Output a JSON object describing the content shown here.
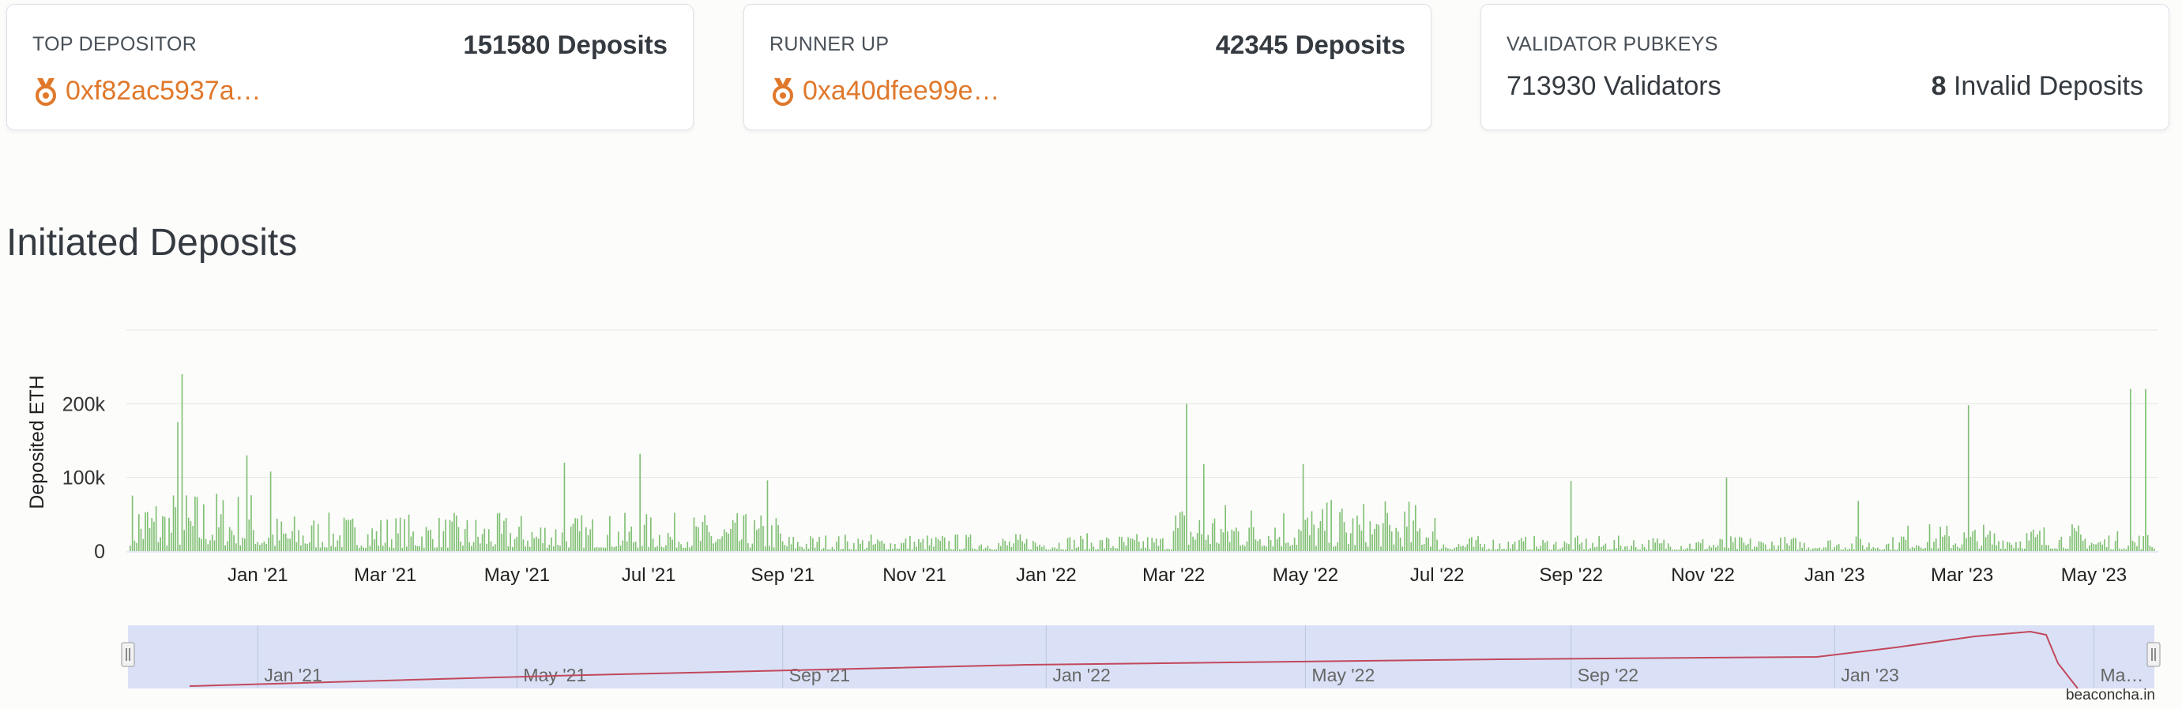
{
  "cards": {
    "top_depositor": {
      "label": "TOP DEPOSITOR",
      "count": "151580 Deposits",
      "address": "0xf82ac5937a…",
      "icon": "medal-icon"
    },
    "runner_up": {
      "label": "RUNNER UP",
      "count": "42345 Deposits",
      "address": "0xa40dfee99e…",
      "icon": "medal-icon"
    },
    "validator_pubkeys": {
      "label": "VALIDATOR PUBKEYS",
      "validators": "713930 Validators",
      "invalid_count": "8",
      "invalid_label": " Invalid Deposits"
    }
  },
  "section_title": "Initiated Deposits",
  "credit": "beaconcha.in",
  "colors": {
    "bar": "#7fbf72",
    "accent": "#e0782b",
    "navigator_fill": "#d3dcf5",
    "navigator_line": "#c2485c"
  },
  "chart_data": {
    "type": "bar",
    "ylabel": "Deposited ETH",
    "y_ticks": [
      "0",
      "100k",
      "200k"
    ],
    "ylim": [
      0,
      300000
    ],
    "x_tick_labels": [
      "Jan '21",
      "Mar '21",
      "May '21",
      "Jul '21",
      "Sep '21",
      "Nov '21",
      "Jan '22",
      "Mar '22",
      "May '22",
      "Jul '22",
      "Sep '22",
      "Nov '22",
      "Jan '23",
      "Mar '23",
      "May '23"
    ],
    "x_ticks": [
      "2021-01-01",
      "2021-03-01",
      "2021-05-01",
      "2021-07-01",
      "2021-09-01",
      "2021-11-01",
      "2022-01-01",
      "2022-03-01",
      "2022-05-01",
      "2022-07-01",
      "2022-09-01",
      "2022-11-01",
      "2023-01-01",
      "2023-03-01",
      "2023-05-01"
    ],
    "x_range": [
      "2020-11-03",
      "2023-05-29"
    ],
    "grid": true,
    "notable_points": [
      {
        "date": "2020-11-27",
        "value": 240000
      },
      {
        "date": "2020-11-25",
        "value": 175000
      },
      {
        "date": "2020-12-27",
        "value": 130000
      },
      {
        "date": "2021-01-07",
        "value": 108000
      },
      {
        "date": "2021-05-23",
        "value": 120000
      },
      {
        "date": "2021-06-27",
        "value": 132000
      },
      {
        "date": "2021-08-25",
        "value": 96000
      },
      {
        "date": "2022-03-07",
        "value": 200000
      },
      {
        "date": "2022-03-15",
        "value": 118000
      },
      {
        "date": "2022-04-30",
        "value": 118000
      },
      {
        "date": "2022-09-01",
        "value": 95000
      },
      {
        "date": "2022-11-12",
        "value": 100000
      },
      {
        "date": "2023-01-12",
        "value": 68000
      },
      {
        "date": "2023-03-04",
        "value": 198000
      },
      {
        "date": "2023-05-18",
        "value": 220000
      },
      {
        "date": "2023-05-25",
        "value": 220000
      }
    ],
    "navigator": {
      "x_tick_labels": [
        "Jan '21",
        "May '21",
        "Sep '21",
        "Jan '22",
        "May '22",
        "Sep '22",
        "Jan '23",
        "Ma…"
      ],
      "x_ticks": [
        "2021-01-01",
        "2021-05-01",
        "2021-09-01",
        "2022-01-01",
        "2022-05-01",
        "2022-09-01",
        "2023-01-01",
        "2023-05-01"
      ]
    }
  }
}
